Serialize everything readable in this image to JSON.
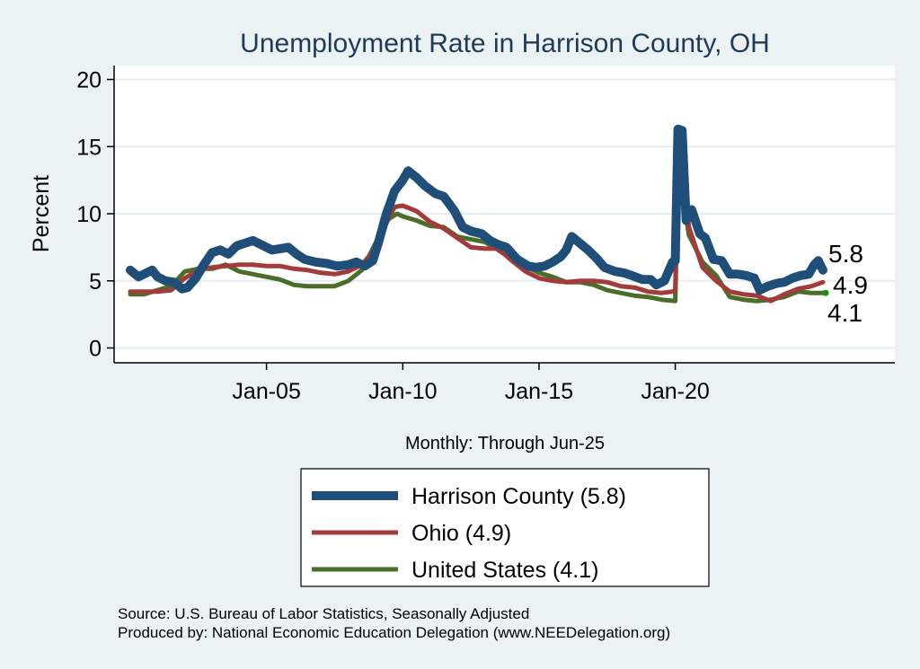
{
  "chart_data": {
    "type": "line",
    "title": "Unemployment Rate in Harrison  County, OH",
    "ylabel": "Percent",
    "xlabel": "Monthly: Through Jun-25",
    "ylim": [
      0,
      20
    ],
    "y_ticks": [
      0,
      5,
      10,
      15,
      20
    ],
    "x_ticks": [
      {
        "label": "Jan-05",
        "x": 2005.0
      },
      {
        "label": "Jan-10",
        "x": 2010.0
      },
      {
        "label": "Jan-15",
        "x": 2015.0
      },
      {
        "label": "Jan-20",
        "x": 2020.0
      }
    ],
    "xlim": [
      1999.5,
      2028.4
    ],
    "grid": true,
    "legend_position": "bottom",
    "end_labels": [
      "5.8",
      "4.9",
      "4.1"
    ],
    "series": [
      {
        "name": "Harrison  County (5.8)",
        "color": "#1f4e79",
        "width": 10,
        "points": [
          [
            2000.0,
            5.8
          ],
          [
            2000.3,
            5.3
          ],
          [
            2000.6,
            5.6
          ],
          [
            2000.8,
            5.8
          ],
          [
            2001.0,
            5.3
          ],
          [
            2001.3,
            5.0
          ],
          [
            2001.6,
            4.9
          ],
          [
            2001.9,
            4.4
          ],
          [
            2002.1,
            4.5
          ],
          [
            2002.4,
            5.2
          ],
          [
            2002.7,
            6.2
          ],
          [
            2003.0,
            7.1
          ],
          [
            2003.3,
            7.3
          ],
          [
            2003.6,
            7.0
          ],
          [
            2003.9,
            7.6
          ],
          [
            2004.2,
            7.8
          ],
          [
            2004.5,
            8.0
          ],
          [
            2004.8,
            7.7
          ],
          [
            2005.2,
            7.3
          ],
          [
            2005.5,
            7.4
          ],
          [
            2005.8,
            7.5
          ],
          [
            2006.1,
            7.0
          ],
          [
            2006.4,
            6.6
          ],
          [
            2006.8,
            6.4
          ],
          [
            2007.2,
            6.3
          ],
          [
            2007.6,
            6.1
          ],
          [
            2008.0,
            6.2
          ],
          [
            2008.3,
            6.4
          ],
          [
            2008.6,
            6.1
          ],
          [
            2008.9,
            6.5
          ],
          [
            2009.1,
            7.8
          ],
          [
            2009.4,
            10.0
          ],
          [
            2009.7,
            11.7
          ],
          [
            2010.0,
            12.5
          ],
          [
            2010.2,
            13.2
          ],
          [
            2010.5,
            12.7
          ],
          [
            2010.8,
            12.1
          ],
          [
            2011.2,
            11.5
          ],
          [
            2011.5,
            11.3
          ],
          [
            2011.9,
            10.2
          ],
          [
            2012.2,
            9.0
          ],
          [
            2012.5,
            8.7
          ],
          [
            2012.9,
            8.5
          ],
          [
            2013.2,
            8.0
          ],
          [
            2013.5,
            7.7
          ],
          [
            2013.8,
            7.5
          ],
          [
            2014.2,
            6.6
          ],
          [
            2014.6,
            6.1
          ],
          [
            2014.9,
            6.0
          ],
          [
            2015.2,
            6.1
          ],
          [
            2015.5,
            6.4
          ],
          [
            2015.8,
            6.8
          ],
          [
            2016.0,
            7.3
          ],
          [
            2016.2,
            8.3
          ],
          [
            2016.5,
            7.8
          ],
          [
            2016.8,
            7.3
          ],
          [
            2017.1,
            6.7
          ],
          [
            2017.4,
            6.0
          ],
          [
            2017.8,
            5.7
          ],
          [
            2018.1,
            5.6
          ],
          [
            2018.4,
            5.4
          ],
          [
            2018.8,
            5.1
          ],
          [
            2019.1,
            5.1
          ],
          [
            2019.3,
            4.7
          ],
          [
            2019.6,
            5.0
          ],
          [
            2019.9,
            6.4
          ],
          [
            2020.0,
            6.5
          ],
          [
            2020.1,
            16.3
          ],
          [
            2020.25,
            16.2
          ],
          [
            2020.4,
            9.5
          ],
          [
            2020.6,
            10.3
          ],
          [
            2020.9,
            8.5
          ],
          [
            2021.1,
            8.2
          ],
          [
            2021.4,
            6.6
          ],
          [
            2021.7,
            6.5
          ],
          [
            2022.0,
            5.5
          ],
          [
            2022.3,
            5.5
          ],
          [
            2022.6,
            5.4
          ],
          [
            2022.9,
            5.2
          ],
          [
            2023.1,
            4.3
          ],
          [
            2023.4,
            4.6
          ],
          [
            2023.7,
            4.8
          ],
          [
            2024.0,
            4.9
          ],
          [
            2024.3,
            5.2
          ],
          [
            2024.6,
            5.4
          ],
          [
            2024.9,
            5.5
          ],
          [
            2025.1,
            6.2
          ],
          [
            2025.25,
            6.5
          ],
          [
            2025.42,
            5.8
          ]
        ]
      },
      {
        "name": "Ohio (4.9)",
        "color": "#a33b3b",
        "width": 5,
        "points": [
          [
            2000.0,
            4.2
          ],
          [
            2000.5,
            4.2
          ],
          [
            2001.0,
            4.2
          ],
          [
            2001.5,
            4.3
          ],
          [
            2002.0,
            5.2
          ],
          [
            2002.5,
            5.8
          ],
          [
            2003.0,
            6.0
          ],
          [
            2003.5,
            6.1
          ],
          [
            2004.0,
            6.2
          ],
          [
            2004.5,
            6.2
          ],
          [
            2005.0,
            6.1
          ],
          [
            2005.5,
            6.1
          ],
          [
            2006.0,
            5.9
          ],
          [
            2006.5,
            5.8
          ],
          [
            2007.0,
            5.6
          ],
          [
            2007.5,
            5.5
          ],
          [
            2008.0,
            5.7
          ],
          [
            2008.5,
            6.2
          ],
          [
            2009.0,
            7.4
          ],
          [
            2009.4,
            9.3
          ],
          [
            2009.7,
            10.5
          ],
          [
            2010.0,
            10.6
          ],
          [
            2010.5,
            10.2
          ],
          [
            2011.0,
            9.4
          ],
          [
            2011.5,
            8.9
          ],
          [
            2012.0,
            8.2
          ],
          [
            2012.5,
            7.5
          ],
          [
            2013.0,
            7.4
          ],
          [
            2013.5,
            7.4
          ],
          [
            2014.0,
            6.5
          ],
          [
            2014.5,
            5.7
          ],
          [
            2015.0,
            5.2
          ],
          [
            2015.5,
            5.0
          ],
          [
            2016.0,
            4.9
          ],
          [
            2016.5,
            5.0
          ],
          [
            2017.0,
            5.0
          ],
          [
            2017.5,
            4.9
          ],
          [
            2018.0,
            4.6
          ],
          [
            2018.5,
            4.5
          ],
          [
            2019.0,
            4.2
          ],
          [
            2019.5,
            4.1
          ],
          [
            2019.9,
            4.2
          ],
          [
            2020.0,
            4.3
          ],
          [
            2020.12,
            16.4
          ],
          [
            2020.3,
            13.7
          ],
          [
            2020.5,
            9.0
          ],
          [
            2021.0,
            6.0
          ],
          [
            2021.5,
            5.0
          ],
          [
            2022.0,
            4.2
          ],
          [
            2022.5,
            4.0
          ],
          [
            2023.0,
            3.9
          ],
          [
            2023.5,
            3.5
          ],
          [
            2024.0,
            4.0
          ],
          [
            2024.5,
            4.4
          ],
          [
            2025.0,
            4.6
          ],
          [
            2025.42,
            4.9
          ]
        ]
      },
      {
        "name": "United States (4.1)",
        "color": "#4a6e2a",
        "width": 5,
        "points": [
          [
            2000.0,
            4.0
          ],
          [
            2000.5,
            4.0
          ],
          [
            2001.0,
            4.3
          ],
          [
            2001.5,
            4.6
          ],
          [
            2002.0,
            5.7
          ],
          [
            2002.5,
            5.9
          ],
          [
            2003.0,
            5.9
          ],
          [
            2003.5,
            6.2
          ],
          [
            2004.0,
            5.7
          ],
          [
            2004.5,
            5.5
          ],
          [
            2005.0,
            5.3
          ],
          [
            2005.5,
            5.1
          ],
          [
            2006.0,
            4.7
          ],
          [
            2006.5,
            4.6
          ],
          [
            2007.0,
            4.6
          ],
          [
            2007.5,
            4.6
          ],
          [
            2008.0,
            5.0
          ],
          [
            2008.5,
            5.8
          ],
          [
            2009.0,
            7.8
          ],
          [
            2009.4,
            9.5
          ],
          [
            2009.8,
            10.0
          ],
          [
            2010.0,
            9.8
          ],
          [
            2010.5,
            9.5
          ],
          [
            2011.0,
            9.1
          ],
          [
            2011.5,
            9.0
          ],
          [
            2012.0,
            8.3
          ],
          [
            2012.5,
            8.1
          ],
          [
            2013.0,
            7.9
          ],
          [
            2013.5,
            7.3
          ],
          [
            2014.0,
            6.6
          ],
          [
            2014.5,
            6.1
          ],
          [
            2015.0,
            5.6
          ],
          [
            2015.5,
            5.3
          ],
          [
            2016.0,
            4.9
          ],
          [
            2016.5,
            4.9
          ],
          [
            2017.0,
            4.7
          ],
          [
            2017.5,
            4.3
          ],
          [
            2018.0,
            4.1
          ],
          [
            2018.5,
            3.9
          ],
          [
            2019.0,
            3.8
          ],
          [
            2019.5,
            3.6
          ],
          [
            2020.0,
            3.5
          ],
          [
            2020.12,
            14.8
          ],
          [
            2020.3,
            11.1
          ],
          [
            2020.5,
            8.4
          ],
          [
            2021.0,
            6.4
          ],
          [
            2021.5,
            5.4
          ],
          [
            2022.0,
            3.8
          ],
          [
            2022.5,
            3.6
          ],
          [
            2023.0,
            3.5
          ],
          [
            2023.5,
            3.6
          ],
          [
            2024.0,
            3.8
          ],
          [
            2024.5,
            4.2
          ],
          [
            2025.0,
            4.1
          ],
          [
            2025.42,
            4.1
          ]
        ]
      }
    ]
  },
  "notes": {
    "source": "Source: U.S. Bureau of Labor Statistics, Seasonally Adjusted",
    "produced": "Produced by: National Economic Education Delegation (www.NEEDelegation.org)"
  }
}
